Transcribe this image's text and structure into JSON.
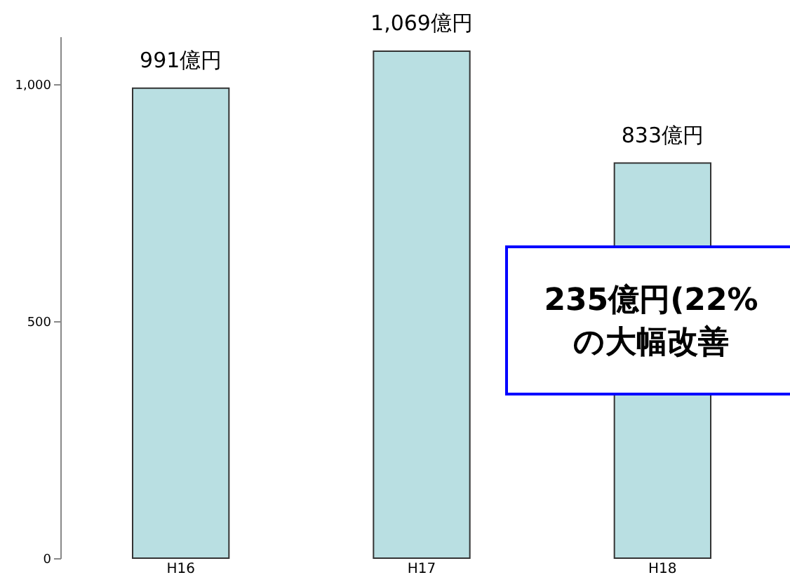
{
  "chart_data": {
    "type": "bar",
    "categories": [
      "H16",
      "H17",
      "H18"
    ],
    "values": [
      991,
      1069,
      833
    ],
    "value_labels": [
      "991億円",
      "1,069億円",
      "833億円"
    ],
    "color": "#b9dfe2",
    "ylim": [
      0,
      1100
    ],
    "yticks": [
      0,
      {
        "value": 500,
        "label": "500"
      },
      {
        "value": 1000,
        "label": "1,000"
      }
    ],
    "annotations": [
      "235億円(22%\nの大幅改善"
    ],
    "grid": false
  }
}
